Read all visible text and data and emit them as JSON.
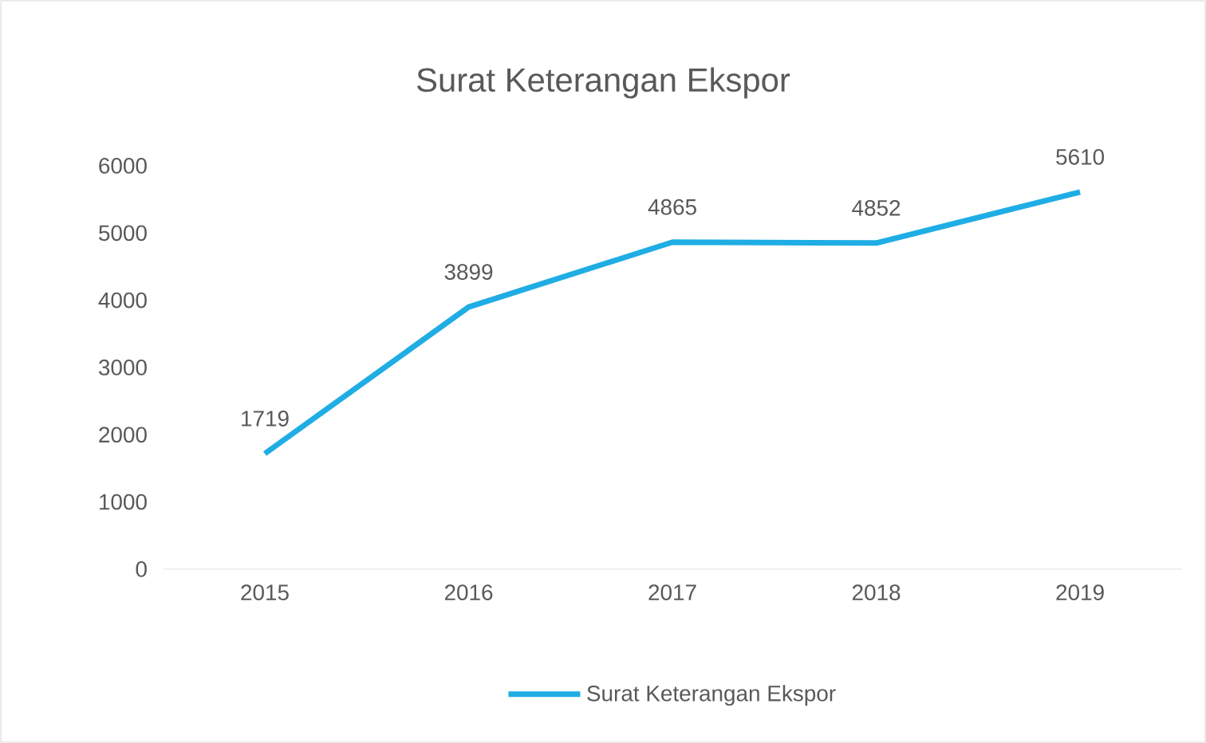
{
  "chart_data": {
    "type": "line",
    "title": "Surat Keterangan Ekspor",
    "categories": [
      "2015",
      "2016",
      "2017",
      "2018",
      "2019"
    ],
    "series": [
      {
        "name": "Surat Keterangan Ekspor",
        "color": "#1fade4",
        "values": [
          1719,
          3899,
          4865,
          4852,
          5610
        ]
      }
    ],
    "ylim": [
      0,
      6000
    ],
    "yticks": [
      0,
      1000,
      2000,
      3000,
      4000,
      5000,
      6000
    ],
    "grid": false,
    "legend": "bottom",
    "data_labels": true,
    "marker": "none",
    "line_style": "solid"
  }
}
